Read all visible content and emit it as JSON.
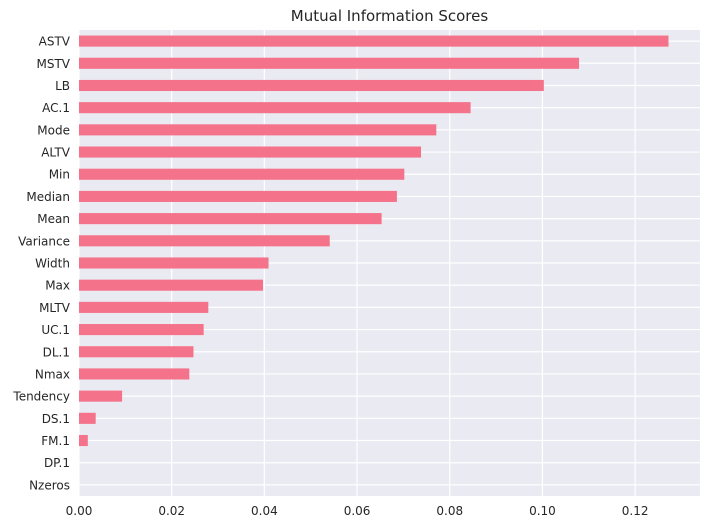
{
  "chart_data": {
    "type": "bar",
    "orientation": "horizontal",
    "title": "Mutual Information Scores",
    "xlabel": "",
    "ylabel": "",
    "xlim": [
      0.0,
      0.134
    ],
    "xticks": [
      "0.00",
      "0.02",
      "0.04",
      "0.06",
      "0.08",
      "0.10",
      "0.12"
    ],
    "xtick_values": [
      0.0,
      0.02,
      0.04,
      0.06,
      0.08,
      0.1,
      0.12
    ],
    "grid": true,
    "categories": [
      "ASTV",
      "MSTV",
      "LB",
      "AC.1",
      "Mode",
      "ALTV",
      "Min",
      "Median",
      "Mean",
      "Variance",
      "Width",
      "Max",
      "MLTV",
      "UC.1",
      "DL.1",
      "Nmax",
      "Tendency",
      "DS.1",
      "FM.1",
      "DP.1",
      "Nzeros"
    ],
    "values": [
      0.1272,
      0.1079,
      0.1003,
      0.0845,
      0.0771,
      0.0738,
      0.0702,
      0.0686,
      0.0653,
      0.0541,
      0.0409,
      0.0397,
      0.0279,
      0.0269,
      0.0247,
      0.0238,
      0.0093,
      0.0036,
      0.0019,
      0.0,
      0.0
    ],
    "colors": {
      "bar": "#f4738a",
      "plot_background": "#eaeaf2",
      "grid": "#ffffff",
      "text": "#262626"
    }
  }
}
